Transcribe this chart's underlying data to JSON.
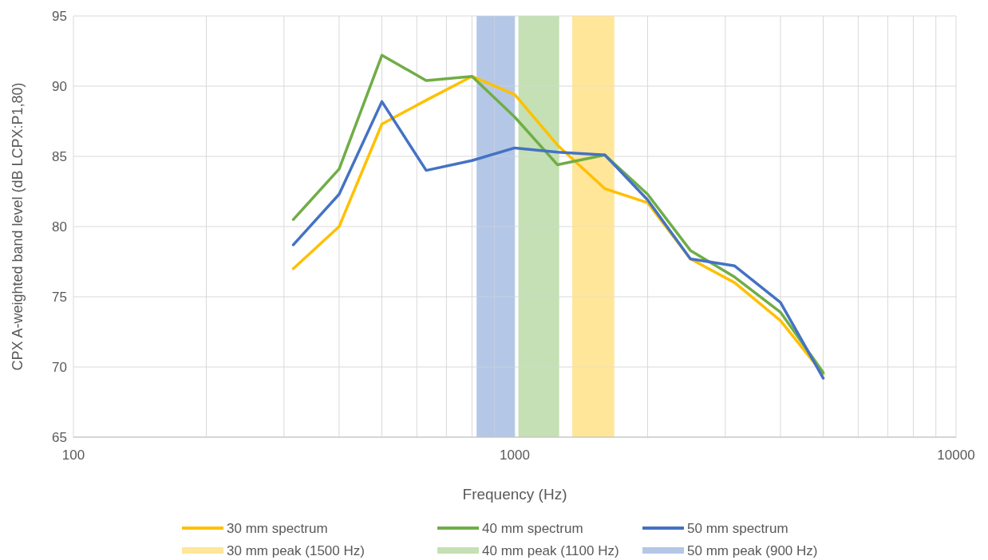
{
  "chart_data": {
    "type": "line",
    "xlabel": "Frequency (Hz)",
    "ylabel": "CPX A-weighted band level (dB LCPX:P1,80)",
    "log": "x",
    "grid": true,
    "legend": "bottom",
    "line_style": "solid",
    "marker": "none",
    "x": [
      315,
      400,
      500,
      630,
      800,
      1000,
      1250,
      1600,
      2000,
      2500,
      3150,
      4000,
      5000
    ],
    "xlim": [
      100,
      10000
    ],
    "xticks": [
      100,
      {
        "value": 200,
        "label": null
      },
      {
        "value": 300,
        "label": null
      },
      {
        "value": 400,
        "label": null
      },
      {
        "value": 500,
        "label": null
      },
      {
        "value": 600,
        "label": null
      },
      {
        "value": 700,
        "label": null
      },
      {
        "value": 800,
        "label": null
      },
      {
        "value": 900,
        "label": null
      },
      1000,
      {
        "value": 2000,
        "label": null
      },
      {
        "value": 3000,
        "label": null
      },
      {
        "value": 4000,
        "label": null
      },
      {
        "value": 5000,
        "label": null
      },
      {
        "value": 6000,
        "label": null
      },
      {
        "value": 7000,
        "label": null
      },
      {
        "value": 8000,
        "label": null
      },
      {
        "value": 9000,
        "label": null
      },
      10000
    ],
    "ylim": [
      65,
      95
    ],
    "yticks": [
      65,
      70,
      75,
      80,
      85,
      90,
      95
    ],
    "series": [
      {
        "name": "30 mm spectrum",
        "color": "#ffc000",
        "values": [
          77.0,
          80.0,
          87.3,
          89.0,
          90.7,
          89.4,
          85.8,
          82.7,
          81.7,
          77.7,
          76.0,
          73.3,
          69.5
        ]
      },
      {
        "name": "40 mm spectrum",
        "color": "#70ad47",
        "values": [
          80.5,
          84.1,
          92.2,
          90.4,
          90.7,
          87.8,
          84.4,
          85.1,
          82.3,
          78.3,
          76.4,
          73.9,
          69.6
        ]
      },
      {
        "name": "50 mm spectrum",
        "color": "#4472c4",
        "values": [
          78.7,
          82.3,
          88.9,
          84.0,
          84.7,
          85.6,
          85.3,
          85.1,
          81.9,
          77.7,
          77.2,
          74.6,
          69.2
        ]
      }
    ],
    "bands": [
      {
        "axis": "x",
        "from": 1350,
        "to": 1680,
        "label": "30 mm peak (1500 Hz)",
        "color": "#ffe699"
      },
      {
        "axis": "x",
        "from": 1020,
        "to": 1260,
        "label": "40 mm peak (1100 Hz)",
        "color": "#c5e0b4"
      },
      {
        "axis": "x",
        "from": 820,
        "to": 1000,
        "label": "50 mm peak (900 Hz)",
        "color": "#b4c7e7"
      }
    ]
  }
}
